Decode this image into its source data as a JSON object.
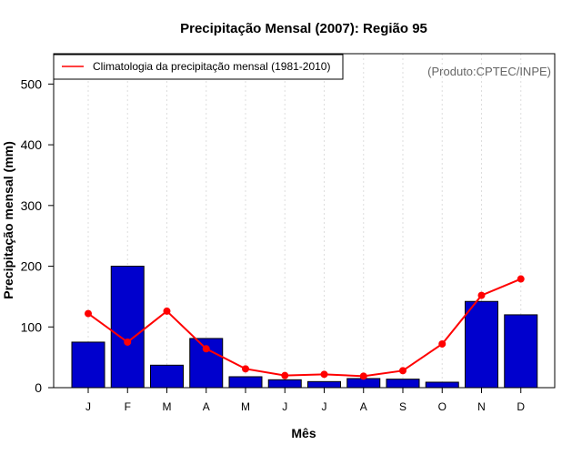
{
  "chart_data": {
    "type": "bar",
    "title": "Precipitação Mensal (2007): Região 95",
    "xlabel": "Mês",
    "ylabel": "Precipitação mensal (mm)",
    "ylim": [
      0,
      550
    ],
    "yticks": [
      0,
      100,
      200,
      300,
      400,
      500
    ],
    "categories": [
      "J",
      "F",
      "M",
      "A",
      "M",
      "J",
      "J",
      "A",
      "S",
      "O",
      "N",
      "D"
    ],
    "series": [
      {
        "name": "Precipitação mensal 2007",
        "kind": "bar",
        "color": "#0000cd",
        "values": [
          75,
          200,
          37,
          81,
          18,
          13,
          10,
          15,
          14,
          9,
          142,
          120
        ]
      },
      {
        "name": "Climatologia da precipitação mensal (1981-2010)",
        "kind": "line",
        "color": "#ff0000",
        "values": [
          122,
          75,
          126,
          64,
          31,
          20,
          22,
          19,
          28,
          72,
          152,
          179
        ]
      }
    ],
    "legend": {
      "label": "Climatologia da precipitação mensal (1981-2010)",
      "position": "top-left"
    },
    "source_note": "(Produto:CPTEC/INPE)",
    "grid": "vertical-dotted"
  }
}
